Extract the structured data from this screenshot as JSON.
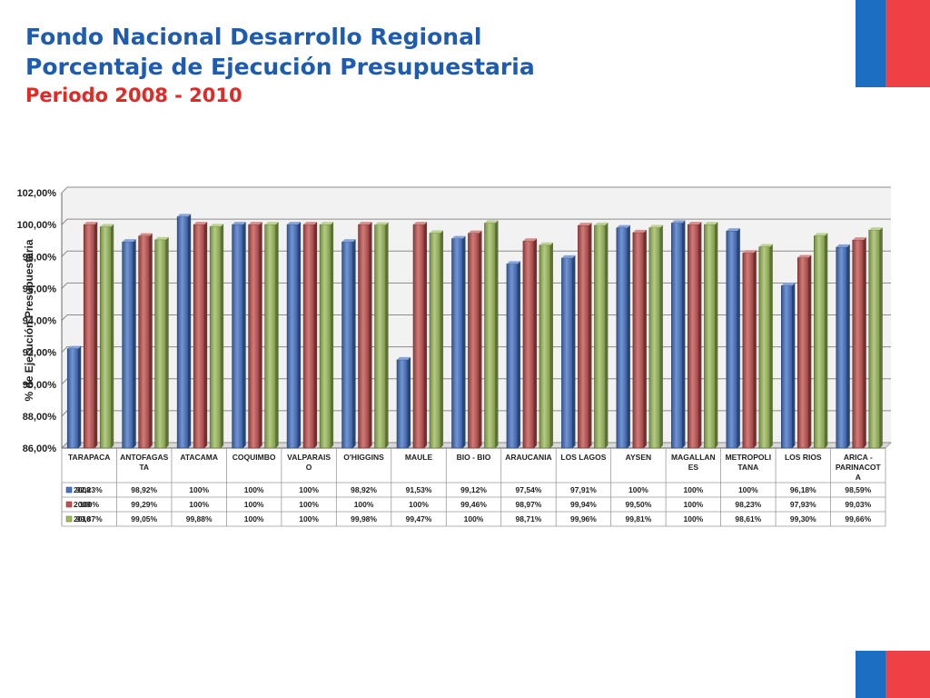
{
  "slide": {
    "title_line1": "Fondo Nacional Desarrollo Regional",
    "title_line2": "Porcentaje de Ejecución Presupuestaria",
    "title_line3": "Periodo 2008 - 2010",
    "colors": {
      "title_blue": "#1f5cb0",
      "title_red": "#e02a25",
      "flag_blue": "#1b6ec2",
      "flag_red": "#ef4045"
    }
  },
  "chart_data": {
    "type": "bar",
    "title": "",
    "xlabel": "",
    "ylabel": "% de Ejecución Presupuestaria",
    "ylim": [
      86,
      102
    ],
    "yticks": [
      86,
      88,
      90,
      92,
      94,
      96,
      98,
      100,
      102
    ],
    "ytick_labels": [
      "86,00%",
      "88,00%",
      "90,00%",
      "92,00%",
      "94,00%",
      "96,00%",
      "98,00%",
      "100,00%",
      "102,00%"
    ],
    "grid": true,
    "legend": "data-table",
    "category_labels": [
      [
        "TARAPACA"
      ],
      [
        "ANTOFAGAS",
        "TA"
      ],
      [
        "ATACAMA"
      ],
      [
        "COQUIMBO"
      ],
      [
        "VALPARAIS",
        "O"
      ],
      [
        "O'HIGGINS"
      ],
      [
        "MAULE"
      ],
      [
        "BIO - BIO"
      ],
      [
        "ARAUCANIA"
      ],
      [
        "LOS LAGOS"
      ],
      [
        "AYSEN"
      ],
      [
        "MAGALLAN",
        "ES"
      ],
      [
        "METROPOLI",
        "TANA"
      ],
      [
        "LOS RIOS"
      ],
      [
        "ARICA -",
        "PARINACOT",
        "A"
      ]
    ],
    "series": [
      {
        "name": "2008",
        "color": "#4472c4",
        "values": [
          92.23,
          98.92,
          100.5,
          100,
          100,
          98.92,
          91.53,
          99.12,
          97.54,
          97.91,
          99.8,
          100.1,
          99.6,
          96.18,
          98.59
        ],
        "labels": [
          "92,23%",
          "98,92%",
          "100%",
          "100%",
          "100%",
          "98,92%",
          "91,53%",
          "99,12%",
          "97,54%",
          "97,91%",
          "100%",
          "100%",
          "100%",
          "96,18%",
          "98,59%"
        ]
      },
      {
        "name": "2009",
        "color": "#c0504d",
        "values": [
          100,
          99.29,
          100,
          100,
          100,
          100,
          100,
          99.46,
          98.97,
          99.94,
          99.5,
          100,
          98.23,
          97.93,
          99.03
        ],
        "labels": [
          "100%",
          "99,29%",
          "100%",
          "100%",
          "100%",
          "100%",
          "100%",
          "99,46%",
          "98,97%",
          "99,94%",
          "99,50%",
          "100%",
          "98,23%",
          "97,93%",
          "99,03%"
        ]
      },
      {
        "name": "2010",
        "color": "#9bbb59",
        "values": [
          99.87,
          99.05,
          99.88,
          100,
          100,
          99.98,
          99.47,
          100.1,
          98.71,
          99.96,
          99.81,
          100,
          98.61,
          99.3,
          99.66
        ],
        "labels": [
          "99,87%",
          "99,05%",
          "99,88%",
          "100%",
          "100%",
          "99,98%",
          "99,47%",
          "100%",
          "98,71%",
          "99,96%",
          "99,81%",
          "100%",
          "98,61%",
          "99,30%",
          "99,66%"
        ]
      }
    ]
  }
}
